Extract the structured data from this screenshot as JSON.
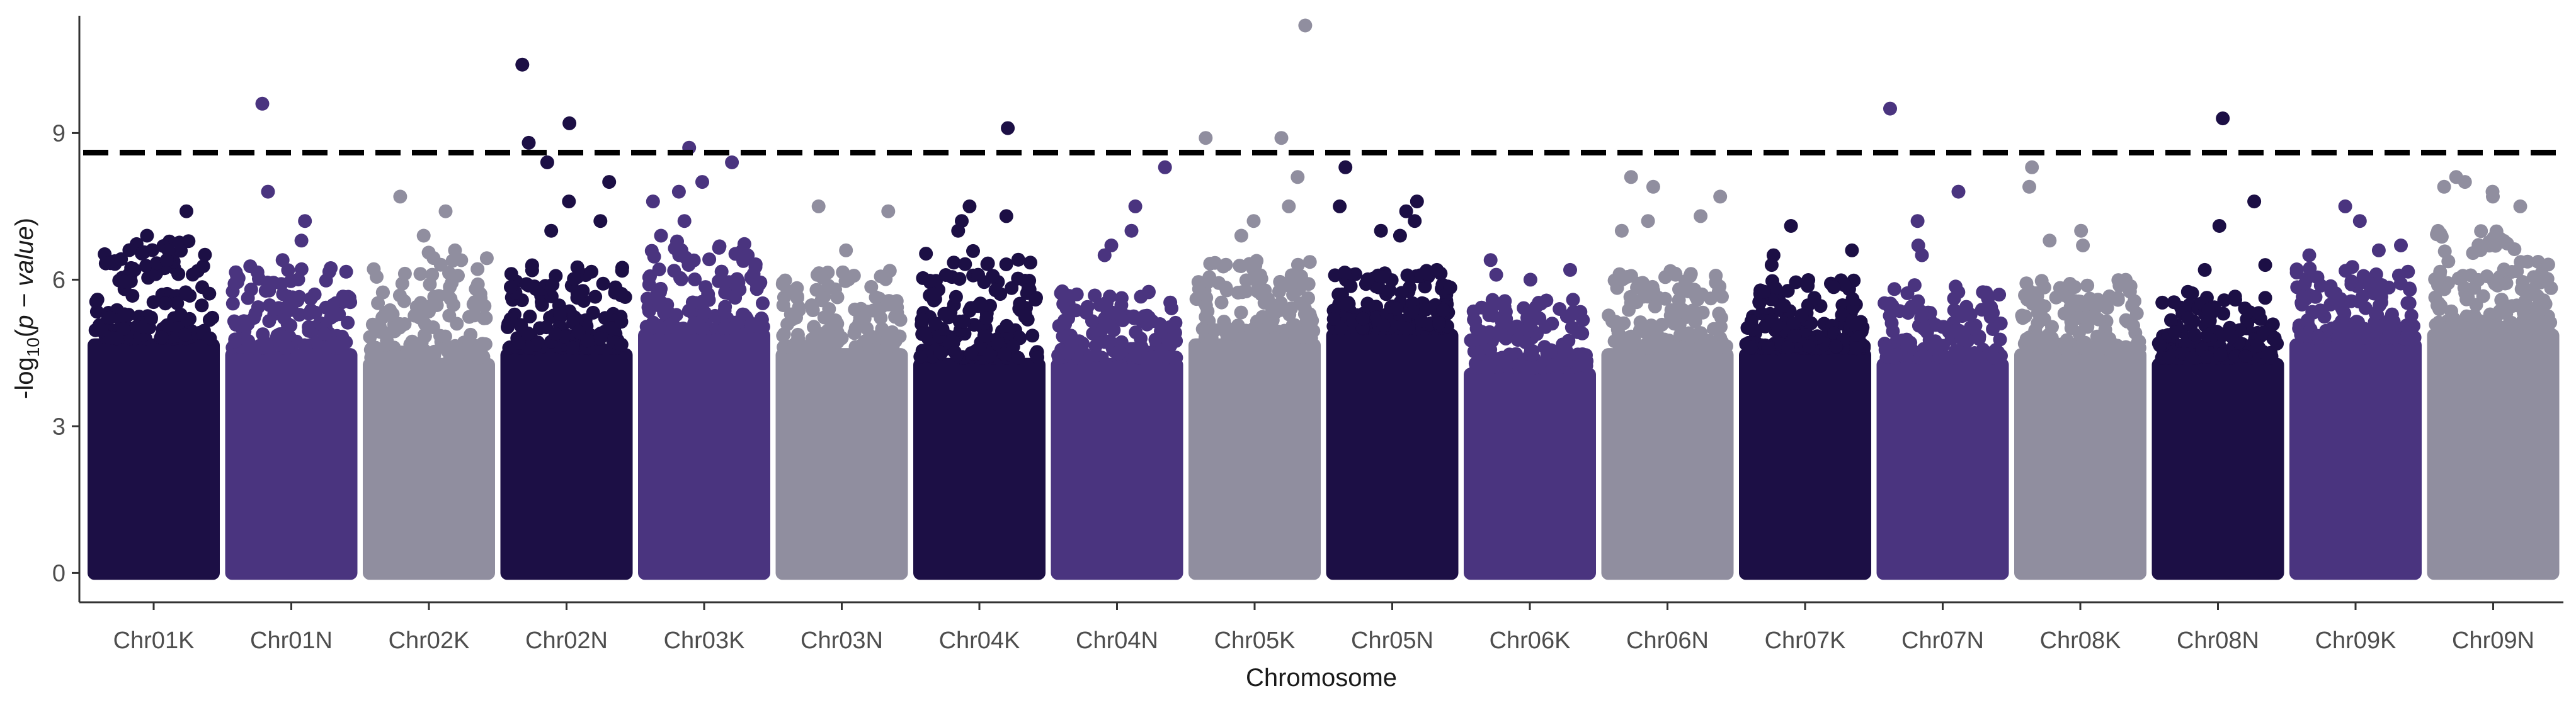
{
  "chart_data": {
    "type": "scatter",
    "subtype": "manhattan",
    "xlabel": "Chromosome",
    "ylabel_parts": {
      "prefix": "-log",
      "sub": "10",
      "open": "(",
      "italic": "p − value",
      "close": ")"
    },
    "ylim": [
      -0.6,
      11.4
    ],
    "yticks": [
      0,
      3,
      6,
      9
    ],
    "ytick_labels": [
      "0",
      "3",
      "6",
      "9"
    ],
    "threshold": 8.6,
    "threshold_color": "#000000",
    "grid": false,
    "legend": "none",
    "palette": [
      "#1c0f45",
      "#4a347f",
      "#908e9f"
    ],
    "chromosomes": [
      {
        "name": "Chr01K",
        "color": "#1c0f45",
        "base": 4.8,
        "band_max": 6.8,
        "top_points": [
          7.4,
          6.9,
          6.6,
          6.4,
          6.2
        ]
      },
      {
        "name": "Chr01N",
        "color": "#4a347f",
        "base": 4.6,
        "band_max": 6.3,
        "top_points": [
          9.6,
          7.8,
          7.2,
          6.8,
          6.4
        ]
      },
      {
        "name": "Chr02K",
        "color": "#908e9f",
        "base": 4.4,
        "band_max": 6.6,
        "top_points": [
          7.7,
          7.4,
          6.9,
          6.6
        ]
      },
      {
        "name": "Chr02N",
        "color": "#1c0f45",
        "base": 4.6,
        "band_max": 6.4,
        "top_points": [
          10.4,
          9.2,
          8.8,
          8.4,
          8.0,
          7.6,
          7.2,
          7.0
        ]
      },
      {
        "name": "Chr03K",
        "color": "#4a347f",
        "base": 5.0,
        "band_max": 6.8,
        "top_points": [
          8.7,
          8.4,
          8.0,
          7.8,
          7.6,
          7.2,
          6.9
        ]
      },
      {
        "name": "Chr03N",
        "color": "#908e9f",
        "base": 4.6,
        "band_max": 6.2,
        "top_points": [
          7.5,
          7.4,
          6.6
        ]
      },
      {
        "name": "Chr04K",
        "color": "#1c0f45",
        "base": 4.4,
        "band_max": 6.6,
        "top_points": [
          9.1,
          7.5,
          7.3,
          7.2,
          7.0
        ]
      },
      {
        "name": "Chr04N",
        "color": "#4a347f",
        "base": 4.4,
        "band_max": 5.8,
        "top_points": [
          8.3,
          7.5,
          7.0,
          6.7,
          6.5
        ]
      },
      {
        "name": "Chr05K",
        "color": "#908e9f",
        "base": 4.8,
        "band_max": 6.4,
        "top_points": [
          11.2,
          8.9,
          8.9,
          8.1,
          7.5,
          7.2,
          6.9
        ]
      },
      {
        "name": "Chr05N",
        "color": "#1c0f45",
        "base": 5.0,
        "band_max": 6.2,
        "top_points": [
          8.3,
          7.6,
          7.5,
          7.4,
          7.2,
          7.0,
          6.9
        ]
      },
      {
        "name": "Chr06K",
        "color": "#4a347f",
        "base": 4.2,
        "band_max": 5.6,
        "top_points": [
          6.4,
          6.2,
          6.1,
          6.0
        ]
      },
      {
        "name": "Chr06N",
        "color": "#908e9f",
        "base": 4.6,
        "band_max": 6.2,
        "top_points": [
          8.1,
          7.9,
          7.7,
          7.3,
          7.2,
          7.0
        ]
      },
      {
        "name": "Chr07K",
        "color": "#1c0f45",
        "base": 4.6,
        "band_max": 6.0,
        "top_points": [
          7.1,
          6.6,
          6.5,
          6.3
        ]
      },
      {
        "name": "Chr07N",
        "color": "#4a347f",
        "base": 4.4,
        "band_max": 5.9,
        "top_points": [
          9.5,
          7.8,
          7.2,
          6.7,
          6.5
        ]
      },
      {
        "name": "Chr08K",
        "color": "#908e9f",
        "base": 4.6,
        "band_max": 6.0,
        "top_points": [
          8.3,
          7.9,
          7.0,
          6.8,
          6.7
        ]
      },
      {
        "name": "Chr08N",
        "color": "#1c0f45",
        "base": 4.4,
        "band_max": 5.8,
        "top_points": [
          9.3,
          7.6,
          7.1,
          6.3,
          6.2
        ]
      },
      {
        "name": "Chr09K",
        "color": "#4a347f",
        "base": 4.8,
        "band_max": 6.3,
        "top_points": [
          7.5,
          7.2,
          6.7,
          6.6,
          6.5
        ]
      },
      {
        "name": "Chr09N",
        "color": "#908e9f",
        "base": 5.0,
        "band_max": 7.0,
        "top_points": [
          8.1,
          8.0,
          7.9,
          7.8,
          7.7,
          7.5
        ]
      }
    ]
  }
}
